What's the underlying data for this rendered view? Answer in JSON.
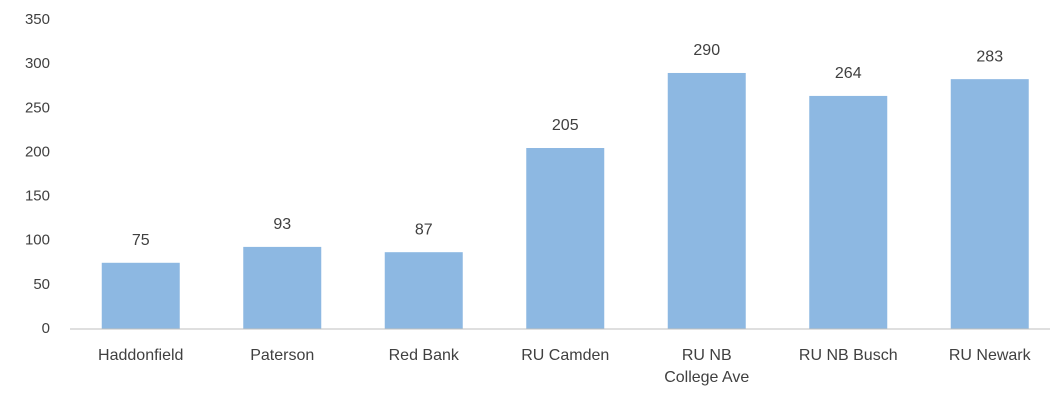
{
  "chart_data": {
    "type": "bar",
    "categories": [
      "Haddonfield",
      "Paterson",
      "Red Bank",
      "RU Camden",
      "RU NB College Ave",
      "RU NB Busch",
      "RU Newark"
    ],
    "values": [
      75,
      93,
      87,
      205,
      290,
      264,
      283
    ],
    "color": "#8db8e2",
    "ylim": [
      0,
      350
    ],
    "yticks": [
      0,
      50,
      100,
      150,
      200,
      250,
      300,
      350
    ],
    "grid": false
  }
}
